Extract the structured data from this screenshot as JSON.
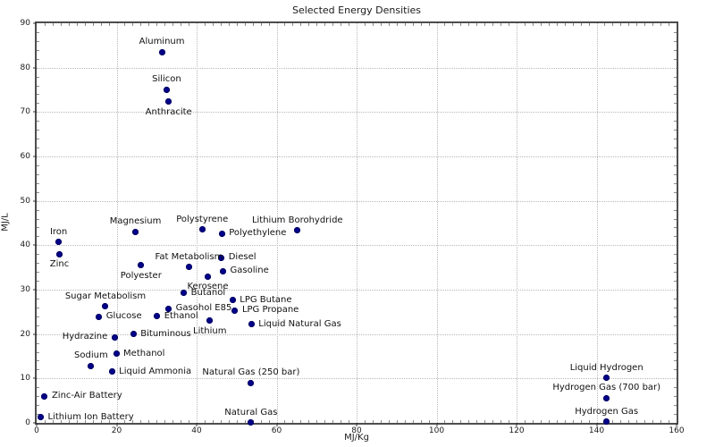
{
  "chart_data": {
    "type": "scatter",
    "title": "Selected Energy Densities",
    "xlabel": "MJ/Kg",
    "ylabel": "MJ/L",
    "xlim": [
      0,
      160
    ],
    "ylim": [
      0,
      90
    ],
    "xticks": [
      0,
      20,
      40,
      60,
      80,
      100,
      120,
      140,
      160
    ],
    "yticks": [
      0,
      10,
      20,
      30,
      40,
      50,
      60,
      70,
      80,
      90
    ],
    "grid": true,
    "legend": false,
    "colors": {
      "marker": "#00008b",
      "grid": "#b8b8b8",
      "frame": "#4d4d4d",
      "text": "#1a1a1a"
    },
    "points": [
      {
        "label": "Aluminum",
        "x": 31.3,
        "y": 83.5,
        "label_pos": "above"
      },
      {
        "label": "Silicon",
        "x": 32.5,
        "y": 75.0,
        "label_pos": "above"
      },
      {
        "label": "Anthracite",
        "x": 33.0,
        "y": 72.3,
        "label_pos": "below"
      },
      {
        "label": "Polystyrene",
        "x": 41.4,
        "y": 43.5,
        "label_pos": "above"
      },
      {
        "label": "Lithium Borohydride",
        "x": 65.2,
        "y": 43.3,
        "label_pos": "above"
      },
      {
        "label": "Magnesium",
        "x": 24.7,
        "y": 43.0,
        "label_pos": "above"
      },
      {
        "label": "Polyethylene",
        "x": 46.3,
        "y": 42.6,
        "label_pos": "right"
      },
      {
        "label": "Iron",
        "x": 5.5,
        "y": 40.7,
        "label_pos": "above"
      },
      {
        "label": "Zinc",
        "x": 5.7,
        "y": 38.0,
        "label_pos": "below"
      },
      {
        "label": "Diesel",
        "x": 46.2,
        "y": 37.2,
        "label_pos": "right"
      },
      {
        "label": "Polyester",
        "x": 26.1,
        "y": 35.5,
        "label_pos": "below"
      },
      {
        "label": "Fat Metabolism",
        "x": 38.1,
        "y": 35.1,
        "label_pos": "above"
      },
      {
        "label": "Gasoline",
        "x": 46.6,
        "y": 34.2,
        "label_pos": "right"
      },
      {
        "label": "Kerosene",
        "x": 42.8,
        "y": 33.0,
        "label_pos": "below"
      },
      {
        "label": "Butanol",
        "x": 36.8,
        "y": 29.2,
        "label_pos": "right"
      },
      {
        "label": "LPG Butane",
        "x": 49.0,
        "y": 27.6,
        "label_pos": "right"
      },
      {
        "label": "Sugar Metabolism",
        "x": 17.2,
        "y": 26.2,
        "label_pos": "above"
      },
      {
        "label": "Gasohol E85",
        "x": 33.0,
        "y": 25.7,
        "label_pos": "right"
      },
      {
        "label": "LPG Propane",
        "x": 49.6,
        "y": 25.3,
        "label_pos": "right"
      },
      {
        "label": "Ethanol",
        "x": 30.1,
        "y": 24.0,
        "label_pos": "right"
      },
      {
        "label": "Glucose",
        "x": 15.6,
        "y": 23.9,
        "label_pos": "right"
      },
      {
        "label": "Lithium",
        "x": 43.3,
        "y": 23.0,
        "label_pos": "below"
      },
      {
        "label": "Liquid Natural Gas",
        "x": 53.7,
        "y": 22.2,
        "label_pos": "right"
      },
      {
        "label": "Bituminous",
        "x": 24.2,
        "y": 20.0,
        "label_pos": "right"
      },
      {
        "label": "Hydrazine",
        "x": 19.5,
        "y": 19.3,
        "label_pos": "left"
      },
      {
        "label": "Methanol",
        "x": 19.9,
        "y": 15.6,
        "label_pos": "right"
      },
      {
        "label": "Sodium",
        "x": 13.6,
        "y": 12.8,
        "label_pos": "above"
      },
      {
        "label": "Liquid Ammonia",
        "x": 18.8,
        "y": 11.5,
        "label_pos": "right"
      },
      {
        "label": "Liquid Hydrogen",
        "x": 142.5,
        "y": 10.1,
        "label_pos": "above"
      },
      {
        "label": "Natural Gas (250 bar)",
        "x": 53.6,
        "y": 9.0,
        "label_pos": "above"
      },
      {
        "label": "Zinc-Air Battery",
        "x": 2.0,
        "y": 6.0,
        "label_pos": "right"
      },
      {
        "label": "Hydrogen Gas (700 bar)",
        "x": 142.5,
        "y": 5.6,
        "label_pos": "above"
      },
      {
        "label": "Lithium Ion Battery",
        "x": 1.0,
        "y": 1.3,
        "label_pos": "right"
      },
      {
        "label": "Hydrogen Gas",
        "x": 142.5,
        "y": 0.3,
        "label_pos": "above"
      },
      {
        "label": "Natural Gas",
        "x": 53.6,
        "y": 0.1,
        "label_pos": "above"
      }
    ]
  }
}
